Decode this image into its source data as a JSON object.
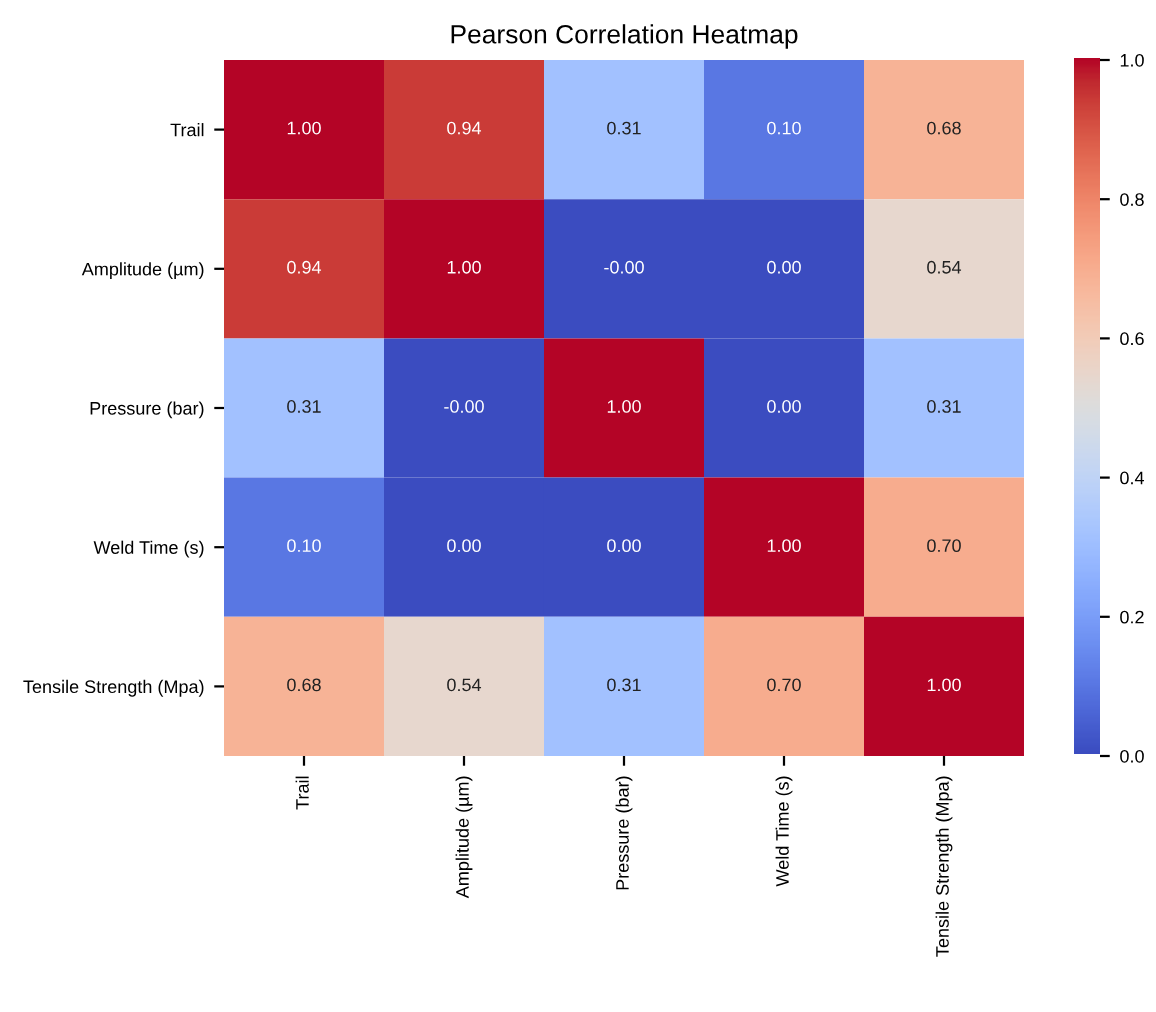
{
  "chart_data": {
    "type": "heatmap",
    "title": "Pearson Correlation Heatmap",
    "categories": [
      "Trail",
      "Amplitude (µm)",
      "Pressure (bar)",
      "Weld Time (s)",
      "Tensile Strength (Mpa)"
    ],
    "y_categories": [
      "Trail",
      "Amplitude (µm)",
      "Pressure (bar)",
      "Weld Time (s)",
      "Tensile Strength (Mpa)"
    ],
    "cells": [
      [
        1.0,
        0.94,
        0.31,
        0.1,
        0.68
      ],
      [
        0.94,
        1.0,
        0.0,
        0.0,
        0.54
      ],
      [
        0.31,
        0.0,
        1.0,
        0.0,
        0.31
      ],
      [
        0.1,
        0.0,
        0.0,
        1.0,
        0.7
      ],
      [
        0.68,
        0.54,
        0.31,
        0.7,
        1.0
      ]
    ],
    "cell_labels": [
      [
        "1.00",
        "0.94",
        "0.31",
        "0.10",
        "0.68"
      ],
      [
        "0.94",
        "1.00",
        "-0.00",
        "0.00",
        "0.54"
      ],
      [
        "0.31",
        "-0.00",
        "1.00",
        "0.00",
        "0.31"
      ],
      [
        "0.10",
        "0.00",
        "0.00",
        "1.00",
        "0.70"
      ],
      [
        "0.68",
        "0.54",
        "0.31",
        "0.70",
        "1.00"
      ]
    ],
    "clim": [
      0,
      1
    ],
    "cticks": [
      {
        "value": 0,
        "label": "0.0"
      },
      0.2,
      0.4,
      0.6,
      0.8,
      {
        "value": 1,
        "label": "1.0"
      }
    ]
  }
}
